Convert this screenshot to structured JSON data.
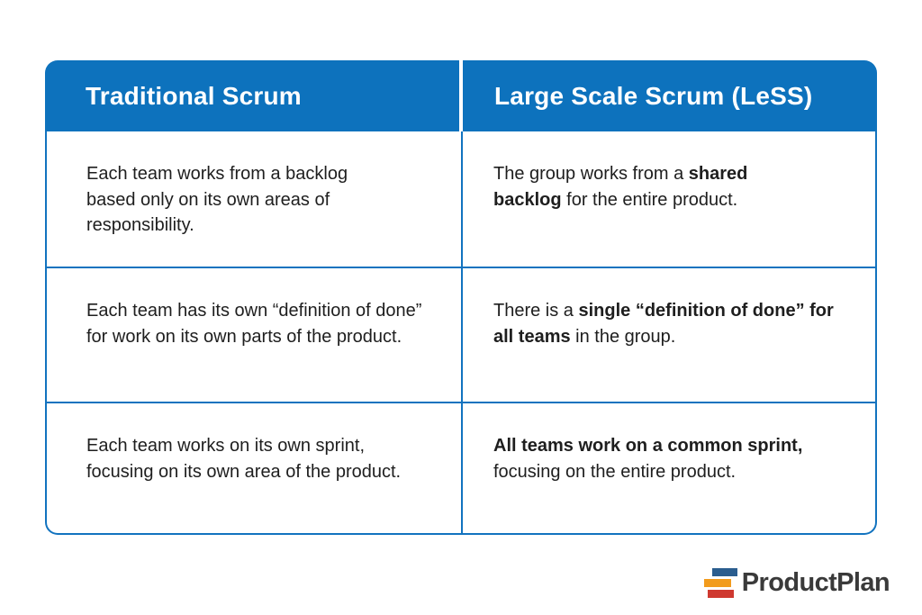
{
  "table": {
    "header": {
      "left": "Traditional Scrum",
      "right": "Large Scale Scrum (LeSS)"
    },
    "rows": [
      {
        "left": {
          "segments": [
            {
              "text": "Each team works from a backlog based only on its own areas of responsibility.",
              "bold": false
            }
          ]
        },
        "right": {
          "segments": [
            {
              "text": "The group works from a ",
              "bold": false
            },
            {
              "text": "shared backlog",
              "bold": true
            },
            {
              "text": " for the entire product.",
              "bold": false
            }
          ]
        }
      },
      {
        "left": {
          "segments": [
            {
              "text": "Each team has its own “definition of done” for work on its own parts of the product.",
              "bold": false
            }
          ]
        },
        "right": {
          "segments": [
            {
              "text": "There is a ",
              "bold": false
            },
            {
              "text": "single “definition of done” for all teams",
              "bold": true
            },
            {
              "text": " in the group.",
              "bold": false
            }
          ]
        }
      },
      {
        "left": {
          "segments": [
            {
              "text": "Each team works on its own sprint, focusing on its own area of the product.",
              "bold": false
            }
          ]
        },
        "right": {
          "segments": [
            {
              "text": "All teams work on a common sprint,",
              "bold": true
            },
            {
              "text": " focusing on the entire product.",
              "bold": false
            }
          ]
        }
      }
    ]
  },
  "chart_data": {
    "type": "table",
    "columns": [
      "Traditional Scrum",
      "Large Scale Scrum (LeSS)"
    ],
    "rows": [
      [
        "Each team works from a backlog based only on its own areas of responsibility.",
        "The group works from a shared backlog for the entire product."
      ],
      [
        "Each team has its own “definition of done” for work on its own parts of the product.",
        "There is a single “definition of done” for all teams in the group."
      ],
      [
        "Each team works on its own sprint, focusing on its own area of the product.",
        "All teams work on a common sprint, focusing on the entire product."
      ]
    ]
  },
  "colors": {
    "header_background": "#0d72bd",
    "grid_lines": "#1273bf",
    "header_text": "#ffffff",
    "body_text": "#1e1e1e"
  },
  "logo": {
    "text": "ProductPlan",
    "text_color": "#3a3a3a",
    "bar_colors": [
      "#2b5d8e",
      "#f29b1d",
      "#cf3930"
    ]
  }
}
